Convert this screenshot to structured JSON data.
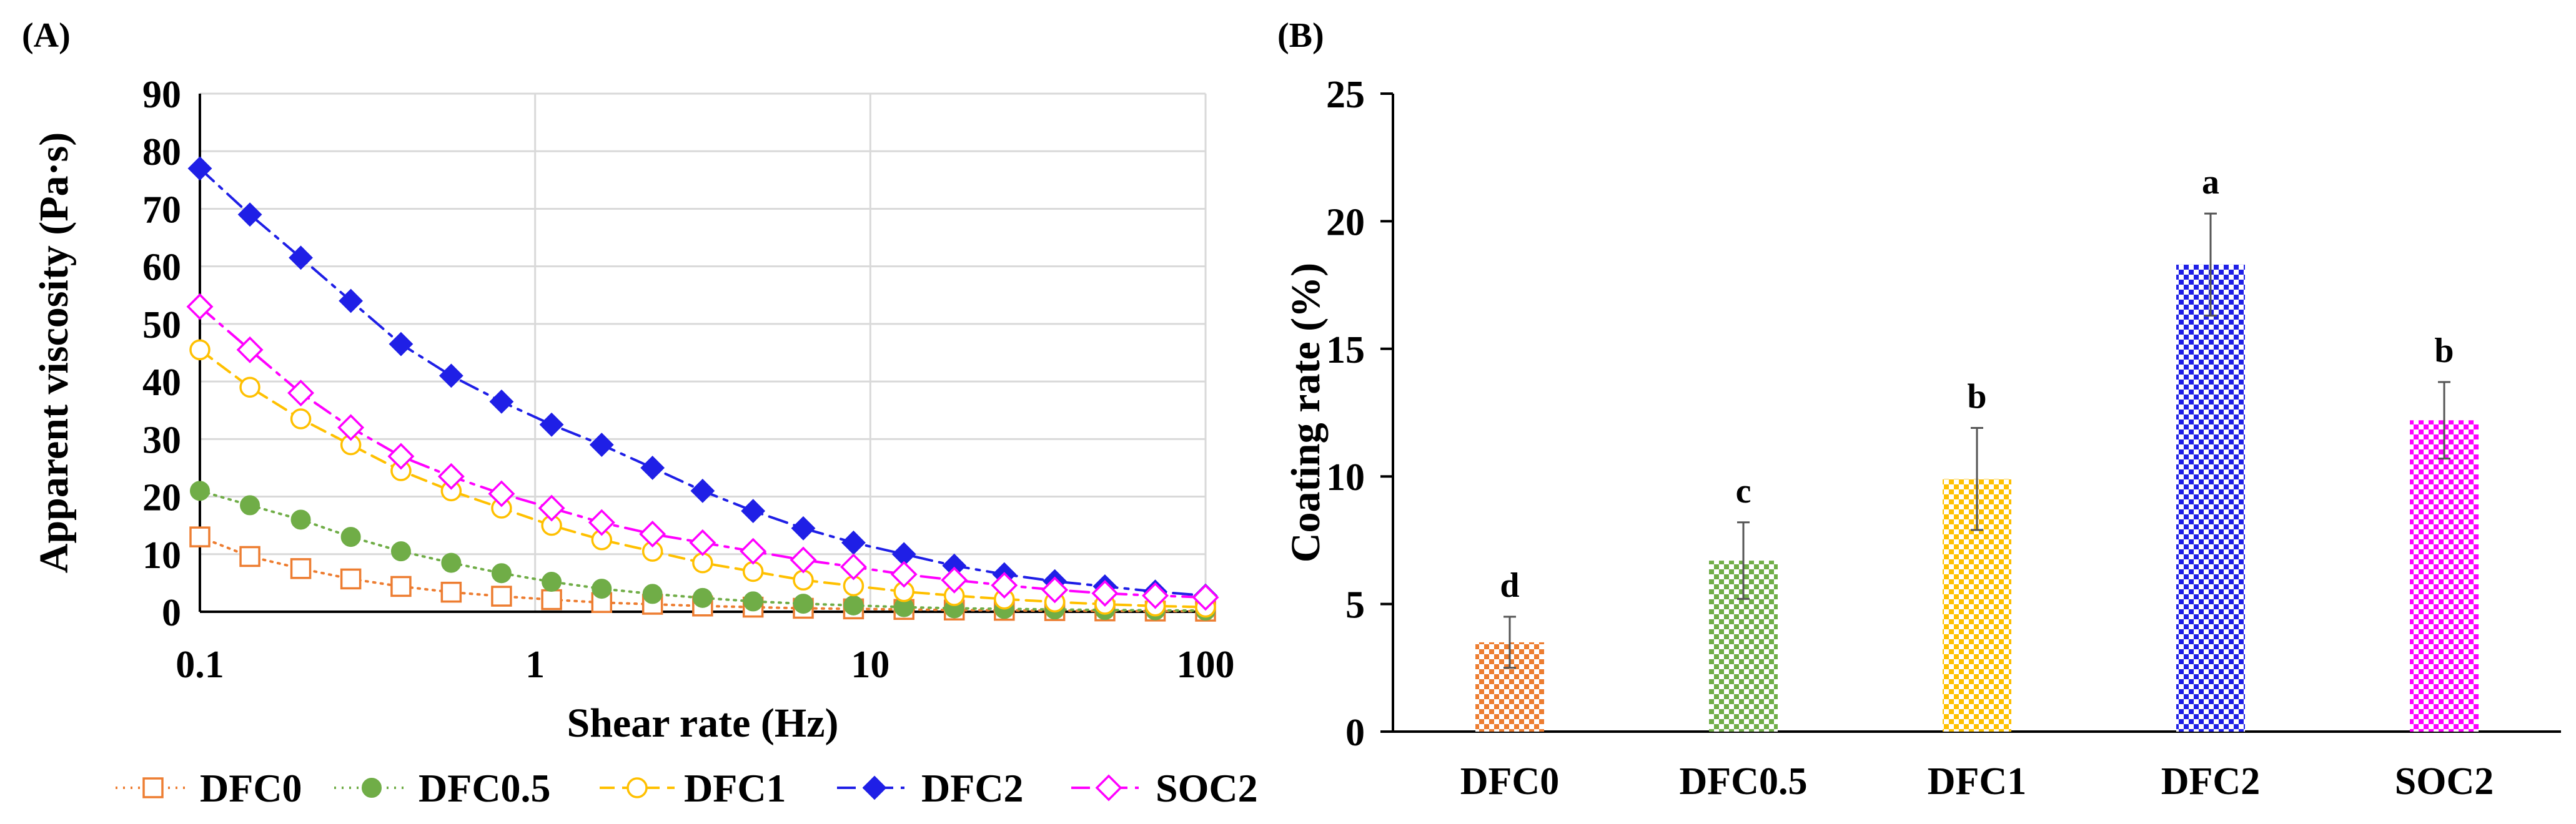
{
  "panel_a_label": "(A)",
  "panel_b_label": "(B)",
  "chart_data": [
    {
      "type": "line",
      "xscale": "log",
      "xlabel": "Shear rate (Hz)",
      "ylabel": "Apparent viscosity (Pa·s)",
      "xlim": [
        0.1,
        100
      ],
      "ylim": [
        0,
        90
      ],
      "xticks": [
        0.1,
        1,
        10,
        100
      ],
      "xtick_labels": [
        "0.1",
        "1",
        "10",
        "100"
      ],
      "yticks": [
        0,
        10,
        20,
        30,
        40,
        50,
        60,
        70,
        80,
        90
      ],
      "ytick_labels": [
        "0",
        "10",
        "20",
        "30",
        "40",
        "50",
        "60",
        "70",
        "80",
        "90"
      ],
      "grid": true,
      "legend_position": "bottom",
      "x": [
        0.1,
        0.141,
        0.2,
        0.282,
        0.398,
        0.562,
        0.794,
        1.12,
        1.58,
        2.24,
        3.16,
        4.47,
        6.31,
        8.91,
        12.6,
        17.8,
        25.1,
        35.5,
        50.1,
        70.8,
        100
      ],
      "series": [
        {
          "name": "DFC0",
          "color": "#ED7D31",
          "marker": "open-square",
          "line": "dotted",
          "values": [
            13,
            9.6,
            7.5,
            5.7,
            4.4,
            3.4,
            2.7,
            2.1,
            1.6,
            1.3,
            1.0,
            0.8,
            0.6,
            0.5,
            0.4,
            0.3,
            0.25,
            0.2,
            0.15,
            0.12,
            0.1
          ]
        },
        {
          "name": "DFC0.5",
          "color": "#70AD47",
          "marker": "filled-circle",
          "line": "dotted",
          "values": [
            21,
            18.5,
            16,
            13,
            10.5,
            8.5,
            6.7,
            5.2,
            4.0,
            3.1,
            2.4,
            1.8,
            1.4,
            1.1,
            0.8,
            0.6,
            0.5,
            0.4,
            0.3,
            0.25,
            0.2
          ]
        },
        {
          "name": "DFC1",
          "color": "#FFC000",
          "marker": "open-circle",
          "line": "dashed",
          "values": [
            45.5,
            39,
            33.5,
            29,
            24.5,
            21,
            18,
            15,
            12.5,
            10.5,
            8.5,
            7,
            5.5,
            4.5,
            3.5,
            2.8,
            2.2,
            1.7,
            1.3,
            1.0,
            0.8
          ]
        },
        {
          "name": "DFC2",
          "color": "#1F1FE6",
          "marker": "filled-diamond",
          "line": "dash-dot",
          "values": [
            77,
            69,
            61.5,
            54,
            46.5,
            41,
            36.5,
            32.5,
            29,
            25,
            21,
            17.5,
            14.5,
            12,
            10,
            8,
            6.5,
            5.3,
            4.4,
            3.5,
            2.8
          ]
        },
        {
          "name": "SOC2",
          "color": "#FF00FF",
          "marker": "open-diamond",
          "line": "dash-dot",
          "values": [
            53,
            45.5,
            38,
            32,
            27,
            23.5,
            20.5,
            18,
            15.5,
            13.5,
            12,
            10.5,
            9,
            7.8,
            6.5,
            5.5,
            4.6,
            3.8,
            3.2,
            2.8,
            2.5
          ]
        }
      ]
    },
    {
      "type": "bar",
      "categories": [
        "DFC0",
        "DFC0.5",
        "DFC1",
        "DFC2",
        "SOC2"
      ],
      "values": [
        3.5,
        6.7,
        9.9,
        18.3,
        12.2
      ],
      "errors": [
        1.0,
        1.5,
        2.0,
        2.0,
        1.5
      ],
      "significance": [
        "d",
        "c",
        "b",
        "a",
        "b"
      ],
      "colors": [
        "#ED7D31",
        "#70AD47",
        "#FFC000",
        "#1F1FE6",
        "#FF00FF"
      ],
      "pattern": "checkerboard",
      "ylabel": "Coating rate (%)",
      "xlabel": "",
      "ylim": [
        0,
        25
      ],
      "yticks": [
        0,
        5,
        10,
        15,
        20,
        25
      ],
      "ytick_labels": [
        "0",
        "5",
        "10",
        "15",
        "20",
        "25"
      ],
      "grid": false
    }
  ]
}
